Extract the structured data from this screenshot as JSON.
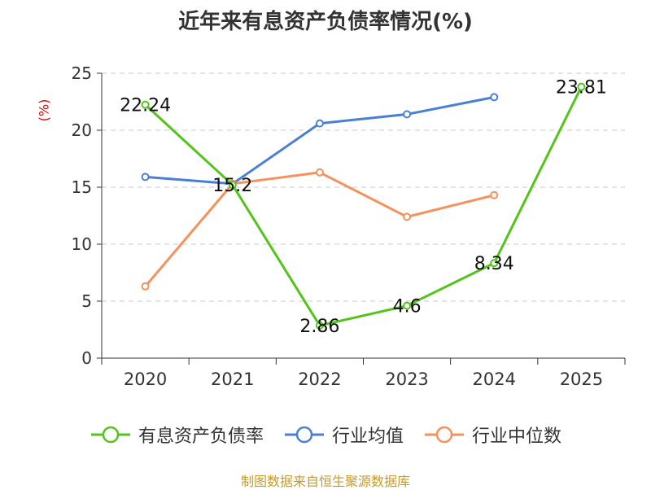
{
  "page": {
    "title": "近年来有息资产负债率情况(%)",
    "y_unit": "(%)",
    "source": "制图数据来自恒生聚源数据库"
  },
  "chart_data": {
    "type": "line",
    "x": [
      "2020",
      "2021",
      "2022",
      "2023",
      "2024",
      "2025"
    ],
    "ylim": [
      0,
      25
    ],
    "yticks": [
      0,
      5,
      10,
      15,
      20,
      25
    ],
    "grid": true,
    "legend_position": "bottom",
    "series": [
      {
        "name": "有息资产负债率",
        "color": "#52c41a",
        "values": [
          22.24,
          15.2,
          2.86,
          4.6,
          8.34,
          23.81
        ],
        "labels": [
          "22.24",
          "15.2",
          "2.86",
          "4.6",
          "8.34",
          "23.81"
        ]
      },
      {
        "name": "行业均值",
        "color": "#4a7fd6",
        "values": [
          15.9,
          15.3,
          20.6,
          21.4,
          22.9,
          null
        ]
      },
      {
        "name": "行业中位数",
        "color": "#f5915a",
        "values": [
          6.3,
          15.3,
          16.3,
          12.4,
          14.3,
          null
        ]
      }
    ]
  }
}
